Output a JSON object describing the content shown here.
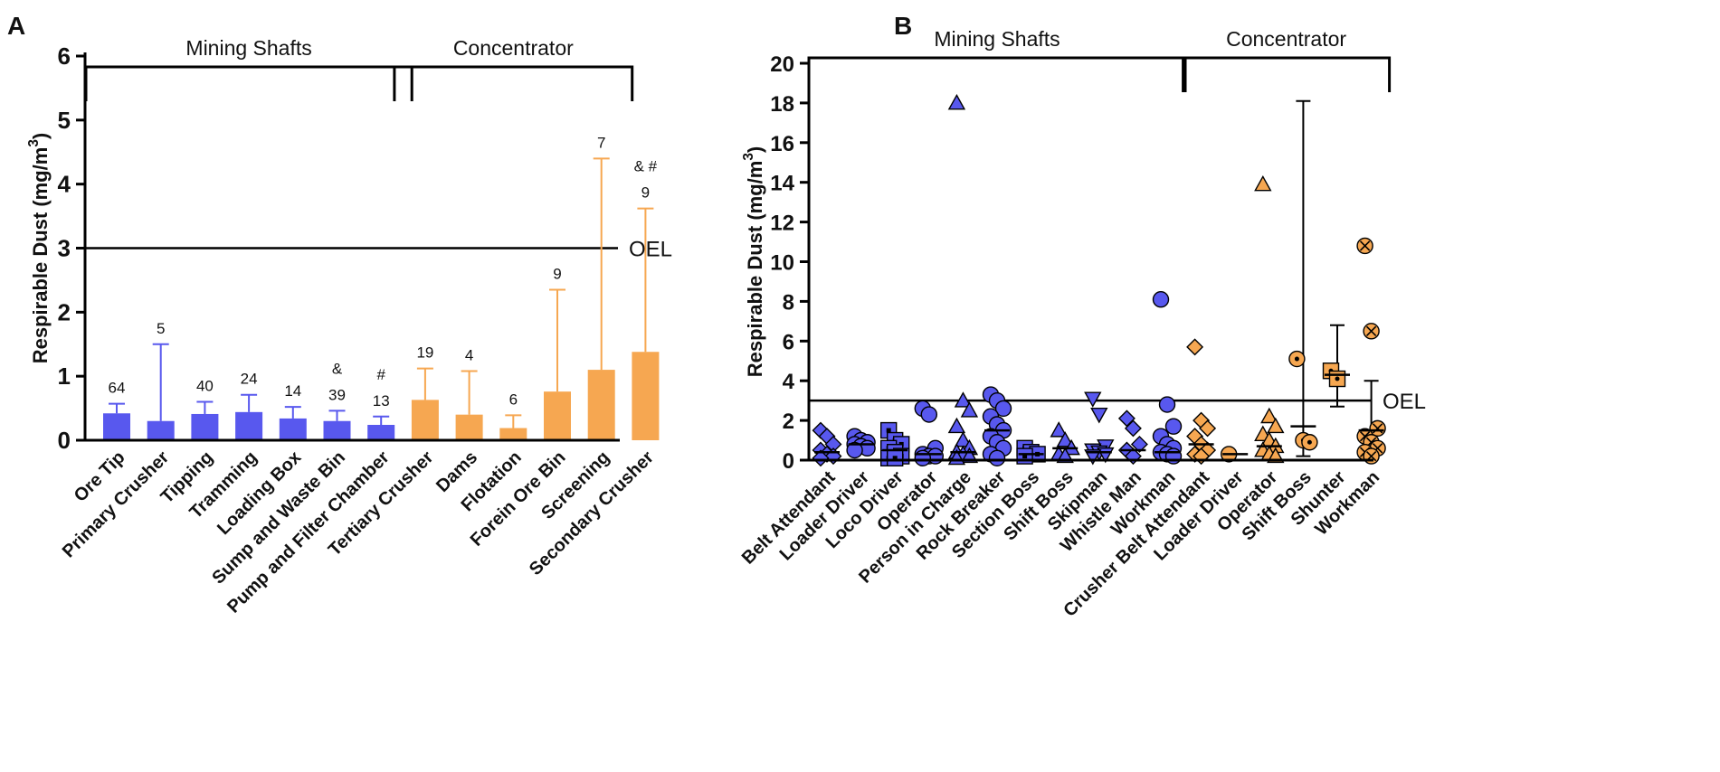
{
  "panel_labels": {
    "a": "A",
    "b": "B"
  },
  "colors": {
    "blue": "#5858ee",
    "orange": "#f6a751",
    "black": "#000000"
  },
  "chart_data": [
    {
      "type": "bar",
      "panel": "A",
      "ylabel_main": "Respirable Dust (mg/m",
      "ylabel_sup": "3",
      "ylabel_tail": ")",
      "ylim": [
        0,
        6
      ],
      "yticks": [
        "0",
        "1",
        "2",
        "3",
        "4",
        "5",
        "6"
      ],
      "oel": {
        "value": 3,
        "label": "OEL"
      },
      "groups": [
        {
          "label": "Mining Shafts",
          "from": 0,
          "to": 6
        },
        {
          "label": "Concentrator",
          "from": 7,
          "to": 11
        }
      ],
      "categories": [
        "Ore Tip",
        "Primary Crusher",
        "Tipping",
        "Tramming",
        "Loading Box",
        "Sump and Waste Bin",
        "Pump and Filter Chamber",
        "Tertiary Crusher",
        "Dams",
        "Flotation",
        "Forein Ore Bin",
        "Screening",
        "Secondary Crusher"
      ],
      "values": [
        0.42,
        0.3,
        0.41,
        0.44,
        0.34,
        0.3,
        0.24,
        0.63,
        0.4,
        0.19,
        0.76,
        1.1,
        1.38
      ],
      "err_upper": [
        0.57,
        1.5,
        0.6,
        0.71,
        0.52,
        0.46,
        0.37,
        1.12,
        1.08,
        0.39,
        2.35,
        4.4,
        3.62
      ],
      "n_labels": [
        "64",
        "5",
        "40",
        "24",
        "14",
        "39",
        "13",
        "19",
        "4",
        "6",
        "9",
        "7",
        "9"
      ],
      "sig_marks": [
        "",
        "",
        "",
        "",
        "",
        "&",
        "#",
        "",
        "",
        "",
        "",
        "",
        "& #"
      ],
      "series_color": [
        "blue",
        "blue",
        "blue",
        "blue",
        "blue",
        "blue",
        "blue",
        "orange",
        "orange",
        "orange",
        "orange",
        "orange",
        "orange"
      ]
    },
    {
      "type": "scatter",
      "panel": "B",
      "ylabel_main": "Respirable Dust (mg/m",
      "ylabel_sup": "3",
      "ylabel_tail": ")",
      "ylim": [
        0,
        20
      ],
      "yticks": [
        "0",
        "2",
        "4",
        "6",
        "8",
        "10",
        "12",
        "14",
        "16",
        "18",
        "20"
      ],
      "oel": {
        "value": 3,
        "label": "OEL"
      },
      "groups": [
        {
          "label": "Mining Shafts",
          "from": 0,
          "to": 10
        },
        {
          "label": "Concentrator",
          "from": 11,
          "to": 16
        }
      ],
      "categories": [
        "Belt Attendant",
        "Loader Driver",
        "Loco Driver",
        "Operator",
        "Person in Charge",
        "Rock Breaker",
        "Section Boss",
        "Shift Boss",
        "Skipman",
        "Whistle Man",
        "Workman",
        "Crusher Belt Attendant",
        "Loader Driver",
        "Operator",
        "Shift Boss",
        "Shunter",
        "Workman"
      ],
      "series": [
        {
          "name": "Belt Attendant",
          "color": "blue",
          "marker": "diamond",
          "values": [
            1.5,
            1.2,
            0.8,
            0.5,
            0.3,
            0.2,
            0.1
          ],
          "median": 0.4
        },
        {
          "name": "Loader Driver",
          "color": "blue",
          "marker": "circle",
          "values": [
            1.2,
            1.0,
            0.9,
            0.8,
            0.7,
            0.6,
            0.5
          ],
          "median": 0.8
        },
        {
          "name": "Loco Driver",
          "color": "blue",
          "marker": "square",
          "values": [
            1.5,
            1.0,
            0.8,
            0.6,
            0.4,
            0.2,
            0.1,
            0.1
          ],
          "median": 0.5
        },
        {
          "name": "Operator",
          "color": "blue",
          "marker": "circle",
          "values": [
            2.6,
            2.3,
            0.6,
            0.3,
            0.2,
            0.2,
            0.1
          ],
          "median": 0.3
        },
        {
          "name": "Person in Charge",
          "color": "blue",
          "marker": "triangle",
          "values": [
            18.0,
            3.0,
            2.5,
            1.7,
            1.0,
            0.6,
            0.4,
            0.3,
            0.2,
            0.1
          ],
          "median": 0.4
        },
        {
          "name": "Rock Breaker",
          "color": "blue",
          "marker": "circle",
          "values": [
            3.3,
            3.0,
            2.6,
            2.2,
            1.8,
            1.5,
            1.2,
            0.9,
            0.6,
            0.3,
            0.1
          ],
          "median": 1.5
        },
        {
          "name": "Section Boss",
          "color": "blue",
          "marker": "square",
          "values": [
            0.6,
            0.4,
            0.3,
            0.2
          ],
          "median": 0.3
        },
        {
          "name": "Shift Boss",
          "color": "blue",
          "marker": "triangle",
          "values": [
            1.5,
            1.0,
            0.6,
            0.3,
            0.2
          ],
          "median": 0.6
        },
        {
          "name": "Skipman",
          "color": "blue",
          "marker": "triangle-down",
          "values": [
            3.1,
            2.3,
            0.7,
            0.5,
            0.4,
            0.3,
            0.2
          ],
          "median": 0.4
        },
        {
          "name": "Whistle Man",
          "color": "blue",
          "marker": "diamond",
          "values": [
            2.1,
            1.6,
            0.8,
            0.5,
            0.2
          ],
          "median": 0.5
        },
        {
          "name": "Workman",
          "color": "blue",
          "marker": "circle",
          "values": [
            8.1,
            2.8,
            1.7,
            1.2,
            0.8,
            0.6,
            0.4,
            0.3,
            0.2
          ],
          "median": 0.4
        },
        {
          "name": "Crusher Belt Attendant",
          "color": "orange",
          "marker": "diamond",
          "values": [
            5.7,
            2.0,
            1.6,
            1.2,
            0.8,
            0.5,
            0.3,
            0.2
          ],
          "median": 0.8
        },
        {
          "name": "Loader Driver",
          "color": "orange",
          "marker": "circle",
          "values": [
            0.3
          ],
          "median": 0.3
        },
        {
          "name": "Operator",
          "color": "orange",
          "marker": "triangle",
          "values": [
            13.9,
            2.2,
            1.7,
            1.3,
            1.0,
            0.7,
            0.5,
            0.3,
            0.2
          ],
          "median": 0.7
        },
        {
          "name": "Shift Boss",
          "color": "orange",
          "marker": "circle-dot",
          "values": [
            5.1,
            1.0,
            0.9
          ],
          "median": 1.7,
          "err": [
            0.2,
            18.1
          ]
        },
        {
          "name": "Shunter",
          "color": "orange",
          "marker": "square-dot",
          "values": [
            4.5,
            4.1
          ],
          "median": 4.3,
          "err": [
            2.7,
            6.8
          ]
        },
        {
          "name": "Workman",
          "color": "orange",
          "marker": "circle-x",
          "values": [
            10.8,
            6.5,
            1.6,
            1.2,
            0.9,
            0.6,
            0.4,
            0.2
          ],
          "median": 1.5,
          "err": [
            0.2,
            4.0
          ]
        }
      ]
    }
  ]
}
